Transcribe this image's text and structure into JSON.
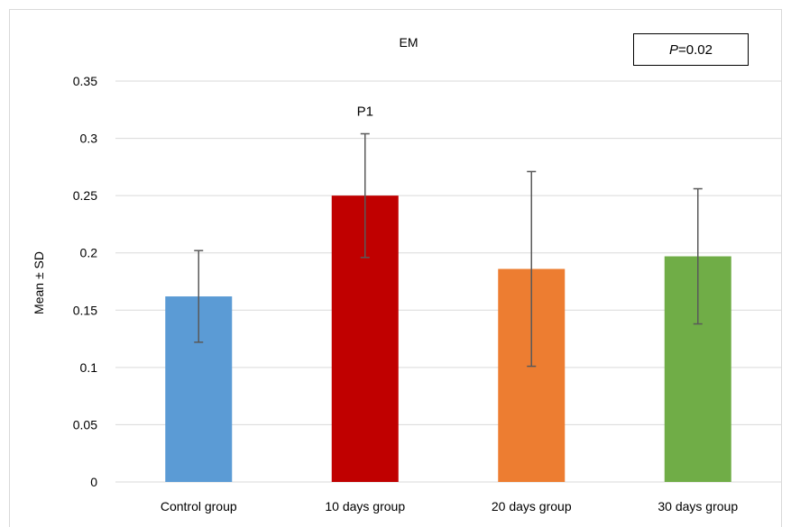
{
  "chart_data": {
    "type": "bar",
    "title": "EM",
    "xlabel": "",
    "ylabel": "Mean ± SD",
    "ylim": [
      0,
      0.35
    ],
    "yticks": [
      "0",
      "0.05",
      "0.1",
      "0.15",
      "0.2",
      "0.25",
      "0.3",
      "0.35"
    ],
    "grid": true,
    "categories": [
      "Control group",
      "10 days group",
      "20 days group",
      "30 days group"
    ],
    "values": [
      0.162,
      0.25,
      0.186,
      0.197
    ],
    "errors": [
      0.04,
      0.054,
      0.085,
      0.059
    ],
    "colors": [
      "#5b9bd5",
      "#c00000",
      "#ed7d31",
      "#70ad47"
    ],
    "annotations": [
      {
        "category": "10 days group",
        "text": "P1"
      }
    ],
    "p_value_box": {
      "symbol": "P",
      "value": "=0.02"
    }
  }
}
